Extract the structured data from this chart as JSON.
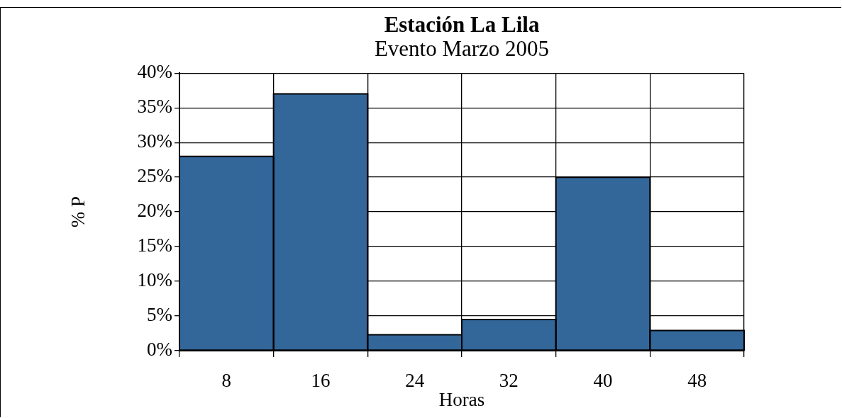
{
  "chart_data": {
    "type": "bar",
    "title": "Estación La Lila",
    "subtitle": "Evento Marzo 2005",
    "xlabel": "Horas",
    "ylabel": "% P",
    "categories": [
      "8",
      "16",
      "24",
      "32",
      "40",
      "48"
    ],
    "values": [
      28,
      37,
      2.3,
      4.5,
      25,
      2.9
    ],
    "color": "#336699",
    "ylim": [
      0,
      40
    ],
    "yticks": [
      {
        "value": 0,
        "label": "0%"
      },
      {
        "value": 5,
        "label": "5%"
      },
      {
        "value": 10,
        "label": "10%"
      },
      {
        "value": 15,
        "label": "15%"
      },
      {
        "value": 20,
        "label": "20%"
      },
      {
        "value": 25,
        "label": "25%"
      },
      {
        "value": 30,
        "label": "30%"
      },
      {
        "value": 35,
        "label": "35%"
      },
      {
        "value": 40,
        "label": "40%"
      }
    ],
    "grid": true
  }
}
